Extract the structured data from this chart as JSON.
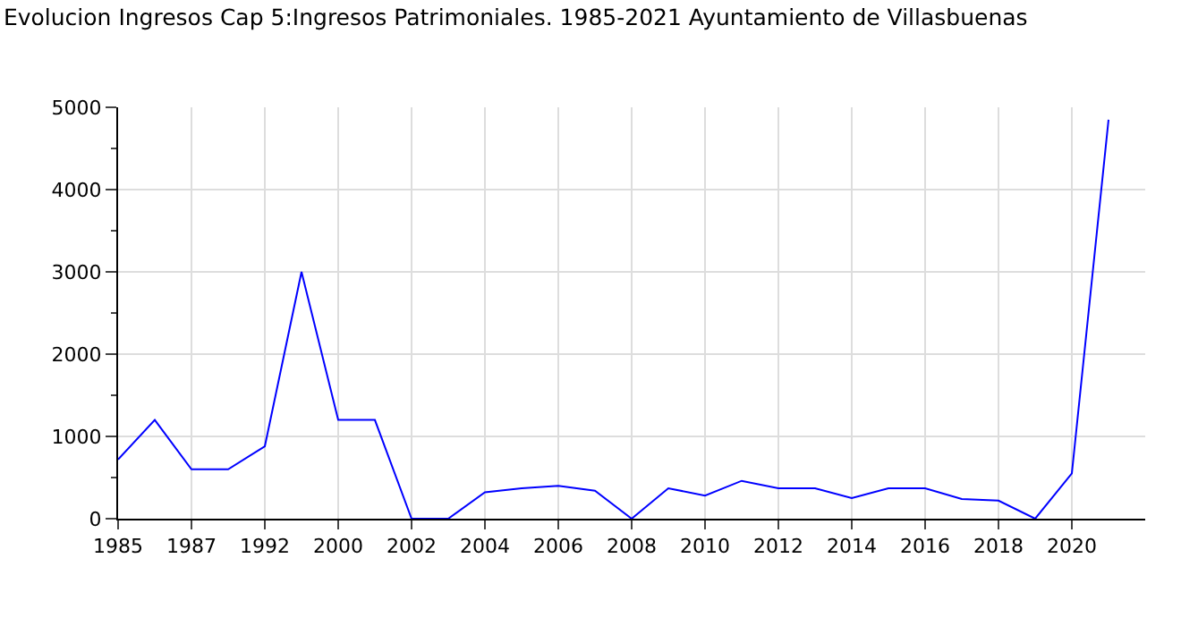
{
  "chart_data": {
    "type": "line",
    "title": "Evolucion Ingresos Cap 5:Ingresos Patrimoniales. 1985-2021 Ayuntamiento de Villasbuenas",
    "categories": [
      "1985",
      null,
      "1987",
      null,
      "1992",
      null,
      "2000",
      null,
      "2002",
      null,
      "2004",
      null,
      "2006",
      null,
      "2008",
      null,
      "2010",
      null,
      "2012",
      null,
      "2014",
      null,
      "2016",
      null,
      "2018",
      null,
      "2020",
      null
    ],
    "series": [
      {
        "color": "#0000ff",
        "values": [
          720,
          1200,
          600,
          600,
          880,
          3000,
          1200,
          1200,
          0,
          0,
          320,
          370,
          400,
          340,
          0,
          370,
          280,
          460,
          370,
          370,
          250,
          370,
          370,
          240,
          220,
          0,
          550,
          4850
        ]
      }
    ],
    "ylim": [
      0,
      5000
    ],
    "yticks": [
      0,
      {
        "value": 500,
        "label": null
      },
      1000,
      {
        "value": 1500,
        "label": null
      },
      2000,
      {
        "value": 2500,
        "label": null
      },
      3000,
      {
        "value": 3500,
        "label": null
      },
      4000,
      {
        "value": 4500,
        "label": null
      },
      5000
    ],
    "grid": true,
    "legend": false,
    "marker": "none",
    "line_style": "solid"
  }
}
